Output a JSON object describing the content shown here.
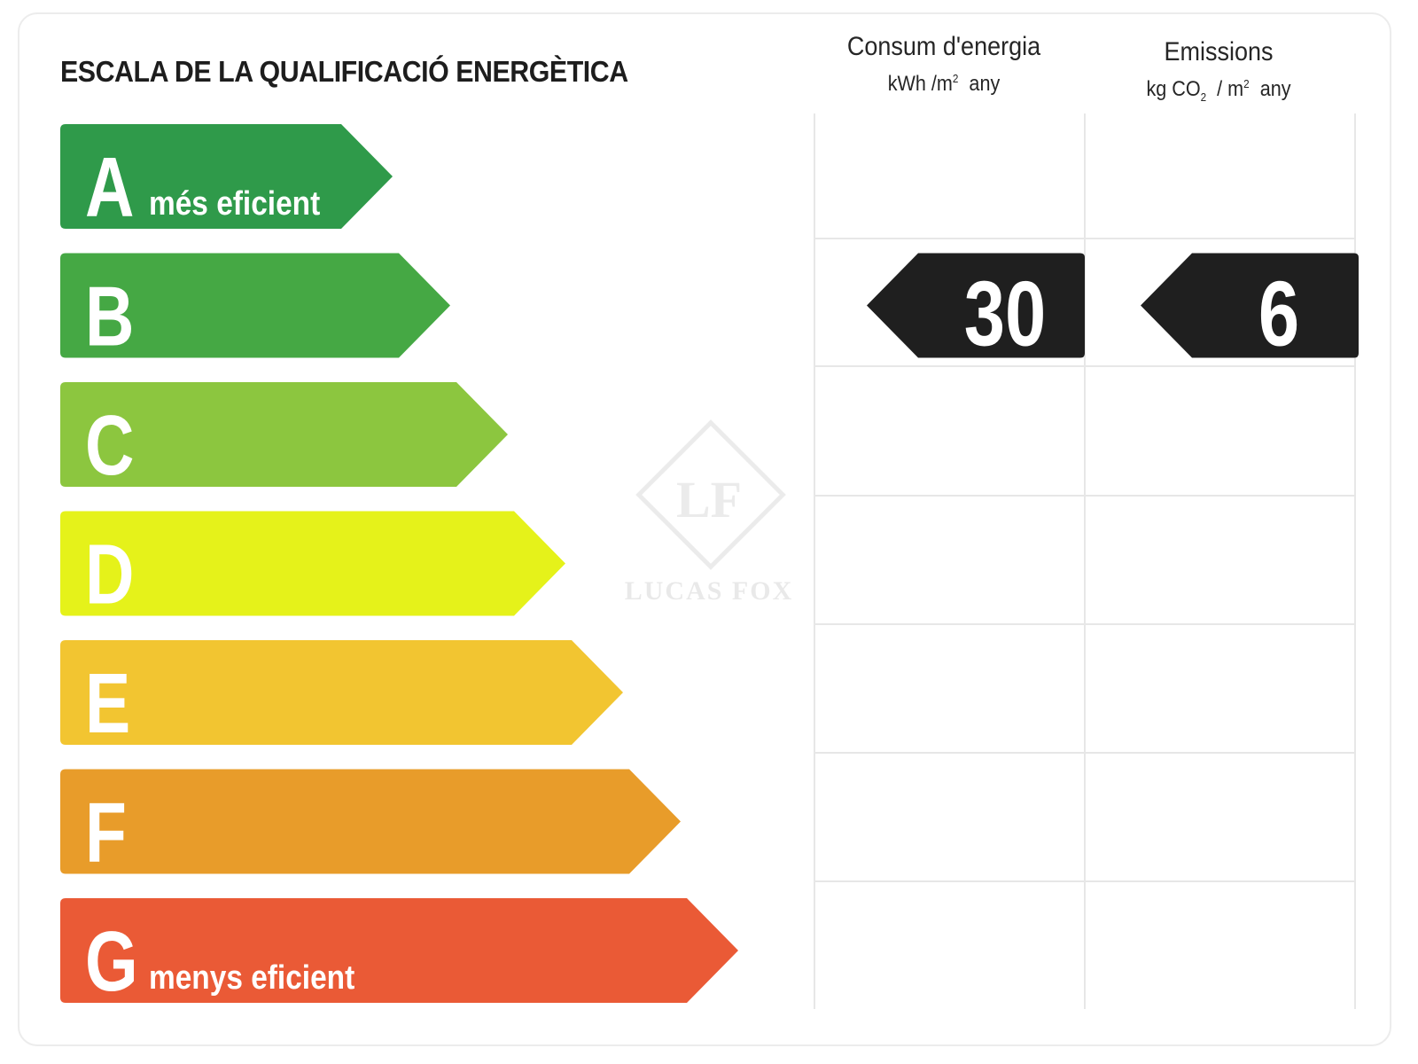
{
  "title": "ESCALA DE LA QUALIFICACIÓ ENERGÈTICA",
  "columns": {
    "energy": {
      "heading": "Consum d'energia",
      "unit_pre": "kWh /m",
      "unit_sup": "2",
      "unit_post": "any"
    },
    "emissions": {
      "heading": "Emissions",
      "unit_pre": "kg CO",
      "unit_sub": "2",
      "unit_mid": " / m",
      "unit_sup": "2",
      "unit_post": "any"
    }
  },
  "classes": [
    {
      "letter": "A",
      "label": "més eficient",
      "color": "#2f9a4a"
    },
    {
      "letter": "B",
      "label": "",
      "color": "#45a844"
    },
    {
      "letter": "C",
      "label": "",
      "color": "#8cc63f"
    },
    {
      "letter": "D",
      "label": "",
      "color": "#e5f21a"
    },
    {
      "letter": "E",
      "label": "",
      "color": "#f2c531"
    },
    {
      "letter": "F",
      "label": "",
      "color": "#e89c2a"
    },
    {
      "letter": "G",
      "label": "menys eficient",
      "color": "#ea5a36"
    }
  ],
  "rating": {
    "class": "B",
    "energy_value": "30",
    "emissions_value": "6",
    "marker_color": "#1f1f1f"
  },
  "watermark": {
    "monogram": "LF",
    "text": "LUCAS FOX"
  }
}
